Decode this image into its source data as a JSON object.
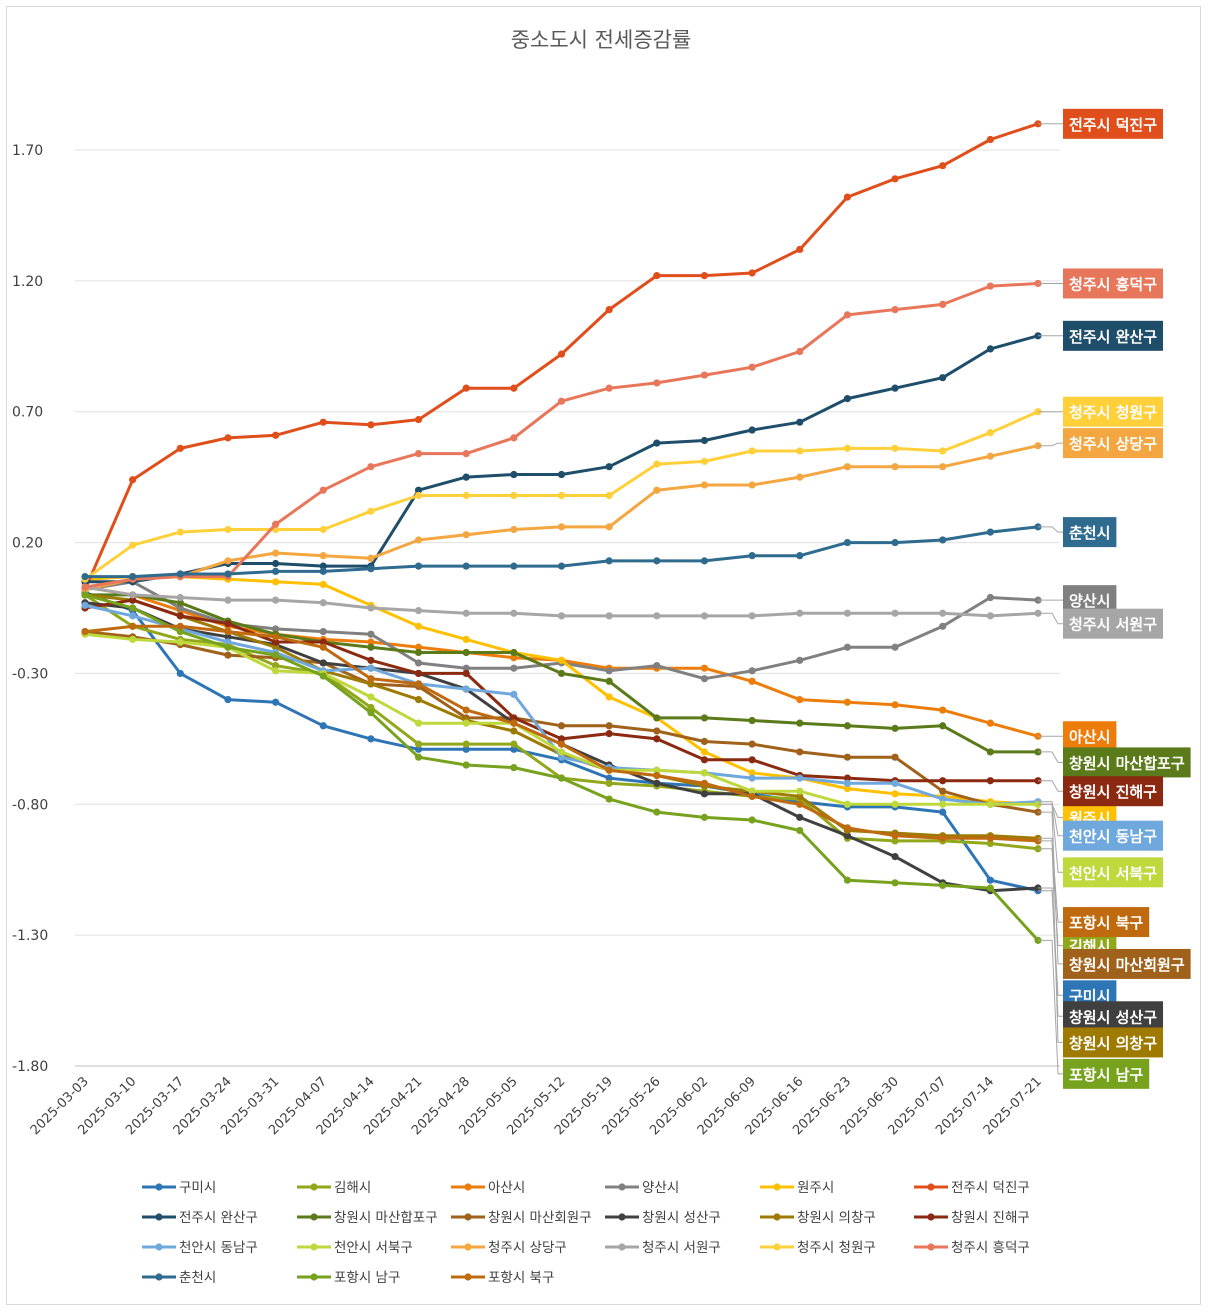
{
  "chart_data": {
    "type": "line",
    "title": "중소도시 전세증감률",
    "xlabel": "",
    "ylabel": "",
    "ylim": [
      -1.8,
      2.0
    ],
    "yticks": [
      1.7,
      1.2,
      0.7,
      0.2,
      -0.3,
      -0.8,
      -1.3,
      -1.8
    ],
    "ytick_labels": [
      "1.70",
      "1.20",
      "0.70",
      "0.20",
      "-0.30",
      "-0.80",
      "-1.30",
      "-1.80"
    ],
    "grid": true,
    "legend": "bottom",
    "x": [
      "2025-03-03",
      "2025-03-10",
      "2025-03-17",
      "2025-03-24",
      "2025-03-31",
      "2025-04-07",
      "2025-04-14",
      "2025-04-21",
      "2025-04-28",
      "2025-05-05",
      "2025-05-12",
      "2025-05-19",
      "2025-05-26",
      "2025-06-02",
      "2025-06-09",
      "2025-06-16",
      "2025-06-23",
      "2025-06-30",
      "2025-07-07",
      "2025-07-14",
      "2025-07-21"
    ],
    "series": [
      {
        "name": "구미시",
        "color": "#2E75B6",
        "label_y": -1.53,
        "values": [
          0.01,
          -0.06,
          -0.3,
          -0.4,
          -0.41,
          -0.5,
          -0.55,
          -0.59,
          -0.59,
          -0.59,
          -0.63,
          -0.7,
          -0.72,
          -0.73,
          -0.76,
          -0.79,
          -0.81,
          -0.81,
          -0.83,
          -1.09,
          -1.13
        ]
      },
      {
        "name": "김해시",
        "color": "#92A81A",
        "label_y": -1.34,
        "values": [
          0.0,
          -0.12,
          -0.17,
          -0.19,
          -0.27,
          -0.3,
          -0.43,
          -0.57,
          -0.57,
          -0.57,
          -0.7,
          -0.72,
          -0.73,
          -0.75,
          -0.77,
          -0.78,
          -0.93,
          -0.94,
          -0.94,
          -0.95,
          -0.97
        ]
      },
      {
        "name": "아산시",
        "color": "#ED7D0A",
        "label_y": -0.54,
        "values": [
          0.03,
          0.0,
          -0.06,
          -0.12,
          -0.15,
          -0.17,
          -0.18,
          -0.2,
          -0.22,
          -0.24,
          -0.25,
          -0.28,
          -0.28,
          -0.28,
          -0.33,
          -0.4,
          -0.41,
          -0.42,
          -0.44,
          -0.49,
          -0.54
        ]
      },
      {
        "name": "양산시",
        "color": "#808080",
        "label_y": -0.02,
        "values": [
          0.02,
          0.05,
          -0.05,
          -0.11,
          -0.13,
          -0.14,
          -0.15,
          -0.26,
          -0.28,
          -0.28,
          -0.26,
          -0.29,
          -0.27,
          -0.32,
          -0.29,
          -0.25,
          -0.2,
          -0.2,
          -0.12,
          -0.01,
          -0.02
        ]
      },
      {
        "name": "원주시",
        "color": "#FFC000",
        "label_y": -0.85,
        "values": [
          0.06,
          0.07,
          0.07,
          0.06,
          0.05,
          0.04,
          -0.04,
          -0.12,
          -0.17,
          -0.22,
          -0.25,
          -0.39,
          -0.47,
          -0.6,
          -0.68,
          -0.7,
          -0.74,
          -0.76,
          -0.77,
          -0.79,
          -0.8
        ]
      },
      {
        "name": "전주시 덕진구",
        "color": "#E04F1B",
        "label_y": 1.8,
        "values": [
          0.02,
          0.44,
          0.56,
          0.6,
          0.61,
          0.66,
          0.65,
          0.67,
          0.79,
          0.79,
          0.92,
          1.09,
          1.22,
          1.22,
          1.23,
          1.32,
          1.52,
          1.59,
          1.64,
          1.74,
          1.8
        ]
      },
      {
        "name": "전주시 완산구",
        "color": "#1F4E6B",
        "label_y": 0.99,
        "values": [
          0.05,
          0.05,
          0.08,
          0.12,
          0.12,
          0.11,
          0.11,
          0.4,
          0.45,
          0.46,
          0.46,
          0.49,
          0.58,
          0.59,
          0.63,
          0.66,
          0.75,
          0.79,
          0.83,
          0.94,
          0.99
        ]
      },
      {
        "name": "창원시 마산합포구",
        "color": "#5B7A1A",
        "label_y": -0.64,
        "values": [
          0.0,
          0.0,
          -0.03,
          -0.1,
          -0.15,
          -0.18,
          -0.2,
          -0.22,
          -0.22,
          -0.22,
          -0.3,
          -0.33,
          -0.47,
          -0.47,
          -0.48,
          -0.49,
          -0.5,
          -0.51,
          -0.5,
          -0.6,
          -0.6
        ]
      },
      {
        "name": "창원시 마산회원구",
        "color": "#A0611A",
        "label_y": -1.41,
        "values": [
          -0.14,
          -0.16,
          -0.19,
          -0.23,
          -0.24,
          -0.26,
          -0.34,
          -0.35,
          -0.47,
          -0.47,
          -0.5,
          -0.5,
          -0.52,
          -0.56,
          -0.57,
          -0.6,
          -0.62,
          -0.62,
          -0.75,
          -0.8,
          -0.83
        ]
      },
      {
        "name": "창원시 성산구",
        "color": "#404040",
        "label_y": -1.61,
        "values": [
          -0.03,
          -0.05,
          -0.13,
          -0.16,
          -0.19,
          -0.26,
          -0.28,
          -0.3,
          -0.36,
          -0.49,
          -0.57,
          -0.65,
          -0.72,
          -0.76,
          -0.76,
          -0.85,
          -0.92,
          -1.0,
          -1.1,
          -1.13,
          -1.12
        ]
      },
      {
        "name": "창원시 의창구",
        "color": "#9E7A00",
        "label_y": -1.71,
        "values": [
          0.0,
          -0.02,
          -0.08,
          -0.14,
          -0.2,
          -0.29,
          -0.34,
          -0.4,
          -0.48,
          -0.52,
          -0.61,
          -0.67,
          -0.69,
          -0.73,
          -0.75,
          -0.77,
          -0.9,
          -0.91,
          -0.92,
          -0.92,
          -0.93
        ]
      },
      {
        "name": "창원시 진해구",
        "color": "#8B2A10",
        "label_y": -0.75,
        "values": [
          -0.05,
          -0.02,
          -0.08,
          -0.11,
          -0.18,
          -0.18,
          -0.25,
          -0.3,
          -0.3,
          -0.47,
          -0.55,
          -0.53,
          -0.55,
          -0.63,
          -0.63,
          -0.69,
          -0.7,
          -0.71,
          -0.71,
          -0.71,
          -0.71
        ]
      },
      {
        "name": "천안시 동남구",
        "color": "#6FA8DC",
        "label_y": -0.92,
        "values": [
          -0.04,
          -0.08,
          -0.13,
          -0.18,
          -0.22,
          -0.29,
          -0.28,
          -0.34,
          -0.36,
          -0.38,
          -0.62,
          -0.66,
          -0.67,
          -0.68,
          -0.7,
          -0.7,
          -0.72,
          -0.72,
          -0.78,
          -0.8,
          -0.79
        ]
      },
      {
        "name": "천안시 서북구",
        "color": "#BFD83C",
        "label_y": -1.06,
        "values": [
          -0.15,
          -0.17,
          -0.18,
          -0.2,
          -0.29,
          -0.3,
          -0.39,
          -0.49,
          -0.49,
          -0.49,
          -0.6,
          -0.67,
          -0.67,
          -0.68,
          -0.75,
          -0.75,
          -0.8,
          -0.8,
          -0.8,
          -0.8,
          -0.8
        ]
      },
      {
        "name": "청주시 상당구",
        "color": "#F4A640",
        "label_y": 0.58,
        "values": [
          0.02,
          0.06,
          0.07,
          0.13,
          0.16,
          0.15,
          0.14,
          0.21,
          0.23,
          0.25,
          0.26,
          0.26,
          0.4,
          0.42,
          0.42,
          0.45,
          0.49,
          0.49,
          0.49,
          0.53,
          0.57
        ]
      },
      {
        "name": "청주시 서원구",
        "color": "#A6A6A6",
        "label_y": -0.11,
        "values": [
          0.03,
          0.0,
          -0.01,
          -0.02,
          -0.02,
          -0.03,
          -0.05,
          -0.06,
          -0.07,
          -0.07,
          -0.08,
          -0.08,
          -0.08,
          -0.08,
          -0.08,
          -0.07,
          -0.07,
          -0.07,
          -0.07,
          -0.08,
          -0.07
        ]
      },
      {
        "name": "청주시 청원구",
        "color": "#FFD03A",
        "label_y": 0.7,
        "values": [
          0.06,
          0.19,
          0.24,
          0.25,
          0.25,
          0.25,
          0.32,
          0.38,
          0.38,
          0.38,
          0.38,
          0.38,
          0.5,
          0.51,
          0.55,
          0.55,
          0.56,
          0.56,
          0.55,
          0.62,
          0.7
        ]
      },
      {
        "name": "청주시 흥덕구",
        "color": "#E8765A",
        "label_y": 1.19,
        "values": [
          0.03,
          0.06,
          0.07,
          0.07,
          0.27,
          0.4,
          0.49,
          0.54,
          0.54,
          0.6,
          0.74,
          0.79,
          0.81,
          0.84,
          0.87,
          0.93,
          1.07,
          1.09,
          1.11,
          1.18,
          1.19
        ]
      },
      {
        "name": "춘천시",
        "color": "#2E6B8F",
        "label_y": 0.24,
        "values": [
          0.07,
          0.07,
          0.08,
          0.08,
          0.09,
          0.09,
          0.1,
          0.11,
          0.11,
          0.11,
          0.11,
          0.13,
          0.13,
          0.13,
          0.15,
          0.15,
          0.2,
          0.2,
          0.21,
          0.24,
          0.26
        ]
      },
      {
        "name": "포항시 남구",
        "color": "#77A21E",
        "label_y": -1.83,
        "values": [
          0.0,
          -0.05,
          -0.14,
          -0.2,
          -0.23,
          -0.31,
          -0.45,
          -0.62,
          -0.65,
          -0.66,
          -0.7,
          -0.78,
          -0.83,
          -0.85,
          -0.86,
          -0.9,
          -1.09,
          -1.1,
          -1.11,
          -1.12,
          -1.32
        ]
      },
      {
        "name": "포항시 북구",
        "color": "#C06A10",
        "label_y": -1.25,
        "values": [
          -0.14,
          -0.12,
          -0.12,
          -0.14,
          -0.16,
          -0.2,
          -0.32,
          -0.34,
          -0.44,
          -0.49,
          -0.57,
          -0.67,
          -0.69,
          -0.72,
          -0.77,
          -0.8,
          -0.89,
          -0.92,
          -0.93,
          -0.93,
          -0.94
        ]
      }
    ]
  }
}
